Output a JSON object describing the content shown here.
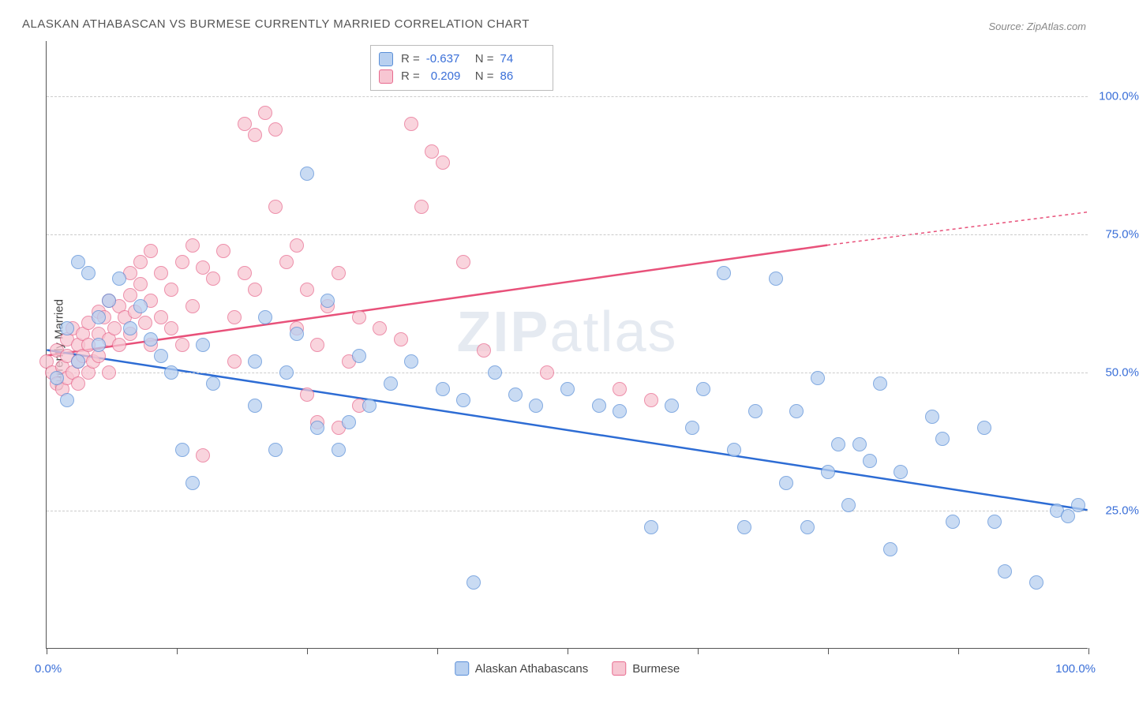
{
  "title": "ALASKAN ATHABASCAN VS BURMESE CURRENTLY MARRIED CORRELATION CHART",
  "source": "Source: ZipAtlas.com",
  "y_axis_title": "Currently Married",
  "watermark_bold": "ZIP",
  "watermark_rest": "atlas",
  "x_axis": {
    "min_label": "0.0%",
    "max_label": "100.0%",
    "min": 0,
    "max": 100,
    "ticks": [
      0,
      12.5,
      25,
      37.5,
      50,
      62.5,
      75,
      87.5,
      100
    ]
  },
  "y_axis": {
    "min": 0,
    "max": 110,
    "gridlines": [
      25,
      50,
      75,
      100
    ],
    "labels": [
      "25.0%",
      "50.0%",
      "75.0%",
      "100.0%"
    ]
  },
  "series": {
    "blue": {
      "name": "Alaskan Athabascans",
      "marker_fill": "#b8d0f0",
      "marker_stroke": "#5a8fd8",
      "marker_opacity": 0.75,
      "marker_radius": 9,
      "line_color": "#2d6cd4",
      "line_width": 2.5,
      "R_label": "R =",
      "R_value": "-0.637",
      "N_label": "N =",
      "N_value": "74",
      "trend": {
        "x1": 0,
        "y1": 54,
        "x2": 100,
        "y2": 25
      },
      "points": [
        [
          1,
          49
        ],
        [
          2,
          58
        ],
        [
          2,
          45
        ],
        [
          3,
          70
        ],
        [
          3,
          52
        ],
        [
          4,
          68
        ],
        [
          5,
          60
        ],
        [
          5,
          55
        ],
        [
          6,
          63
        ],
        [
          7,
          67
        ],
        [
          8,
          58
        ],
        [
          9,
          62
        ],
        [
          10,
          56
        ],
        [
          11,
          53
        ],
        [
          12,
          50
        ],
        [
          13,
          36
        ],
        [
          14,
          30
        ],
        [
          15,
          55
        ],
        [
          16,
          48
        ],
        [
          20,
          52
        ],
        [
          20,
          44
        ],
        [
          21,
          60
        ],
        [
          22,
          36
        ],
        [
          23,
          50
        ],
        [
          24,
          57
        ],
        [
          25,
          86
        ],
        [
          26,
          40
        ],
        [
          27,
          63
        ],
        [
          28,
          36
        ],
        [
          29,
          41
        ],
        [
          30,
          53
        ],
        [
          31,
          44
        ],
        [
          33,
          48
        ],
        [
          35,
          52
        ],
        [
          38,
          47
        ],
        [
          40,
          45
        ],
        [
          41,
          12
        ],
        [
          43,
          50
        ],
        [
          45,
          46
        ],
        [
          47,
          44
        ],
        [
          50,
          47
        ],
        [
          53,
          44
        ],
        [
          55,
          43
        ],
        [
          58,
          22
        ],
        [
          60,
          44
        ],
        [
          62,
          40
        ],
        [
          63,
          47
        ],
        [
          65,
          68
        ],
        [
          66,
          36
        ],
        [
          67,
          22
        ],
        [
          68,
          43
        ],
        [
          70,
          67
        ],
        [
          71,
          30
        ],
        [
          72,
          43
        ],
        [
          73,
          22
        ],
        [
          74,
          49
        ],
        [
          75,
          32
        ],
        [
          76,
          37
        ],
        [
          77,
          26
        ],
        [
          78,
          37
        ],
        [
          79,
          34
        ],
        [
          80,
          48
        ],
        [
          81,
          18
        ],
        [
          82,
          32
        ],
        [
          85,
          42
        ],
        [
          86,
          38
        ],
        [
          87,
          23
        ],
        [
          90,
          40
        ],
        [
          91,
          23
        ],
        [
          92,
          14
        ],
        [
          95,
          12
        ],
        [
          97,
          25
        ],
        [
          98,
          24
        ],
        [
          99,
          26
        ]
      ]
    },
    "pink": {
      "name": "Burmese",
      "marker_fill": "#f7c6d2",
      "marker_stroke": "#e86b8f",
      "marker_opacity": 0.75,
      "marker_radius": 9,
      "line_color": "#e8517a",
      "line_width": 2.5,
      "R_label": "R =",
      "R_value": "0.209",
      "N_label": "N =",
      "N_value": "86",
      "trend": {
        "x1": 0,
        "y1": 53,
        "x2": 75,
        "y2": 73
      },
      "trend_extend": {
        "x1": 75,
        "y1": 73,
        "x2": 100,
        "y2": 79
      },
      "points": [
        [
          0,
          52
        ],
        [
          0.5,
          50
        ],
        [
          1,
          48
        ],
        [
          1,
          54
        ],
        [
          1.5,
          51
        ],
        [
          1.5,
          47
        ],
        [
          2,
          53
        ],
        [
          2,
          49
        ],
        [
          2,
          56
        ],
        [
          2.5,
          58
        ],
        [
          2.5,
          50
        ],
        [
          3,
          52
        ],
        [
          3,
          55
        ],
        [
          3,
          48
        ],
        [
          3.5,
          57
        ],
        [
          3.5,
          53
        ],
        [
          4,
          50
        ],
        [
          4,
          59
        ],
        [
          4,
          55
        ],
        [
          4.5,
          52
        ],
        [
          5,
          61
        ],
        [
          5,
          57
        ],
        [
          5,
          53
        ],
        [
          5.5,
          60
        ],
        [
          6,
          56
        ],
        [
          6,
          63
        ],
        [
          6,
          50
        ],
        [
          6.5,
          58
        ],
        [
          7,
          55
        ],
        [
          7,
          62
        ],
        [
          7.5,
          60
        ],
        [
          8,
          64
        ],
        [
          8,
          68
        ],
        [
          8,
          57
        ],
        [
          8.5,
          61
        ],
        [
          9,
          70
        ],
        [
          9,
          66
        ],
        [
          9.5,
          59
        ],
        [
          10,
          72
        ],
        [
          10,
          63
        ],
        [
          10,
          55
        ],
        [
          11,
          68
        ],
        [
          11,
          60
        ],
        [
          12,
          65
        ],
        [
          12,
          58
        ],
        [
          13,
          70
        ],
        [
          13,
          55
        ],
        [
          14,
          73
        ],
        [
          14,
          62
        ],
        [
          15,
          69
        ],
        [
          15,
          35
        ],
        [
          16,
          67
        ],
        [
          17,
          72
        ],
        [
          18,
          60
        ],
        [
          18,
          52
        ],
        [
          19,
          68
        ],
        [
          19,
          95
        ],
        [
          20,
          93
        ],
        [
          20,
          65
        ],
        [
          21,
          97
        ],
        [
          22,
          80
        ],
        [
          22,
          94
        ],
        [
          23,
          70
        ],
        [
          24,
          58
        ],
        [
          24,
          73
        ],
        [
          25,
          46
        ],
        [
          25,
          65
        ],
        [
          26,
          41
        ],
        [
          26,
          55
        ],
        [
          27,
          62
        ],
        [
          28,
          40
        ],
        [
          28,
          68
        ],
        [
          29,
          52
        ],
        [
          30,
          60
        ],
        [
          30,
          44
        ],
        [
          32,
          58
        ],
        [
          34,
          56
        ],
        [
          35,
          95
        ],
        [
          36,
          80
        ],
        [
          37,
          90
        ],
        [
          38,
          88
        ],
        [
          40,
          70
        ],
        [
          42,
          54
        ],
        [
          48,
          50
        ],
        [
          55,
          47
        ],
        [
          58,
          45
        ]
      ]
    }
  },
  "background_color": "#ffffff",
  "grid_color": "#cccccc"
}
